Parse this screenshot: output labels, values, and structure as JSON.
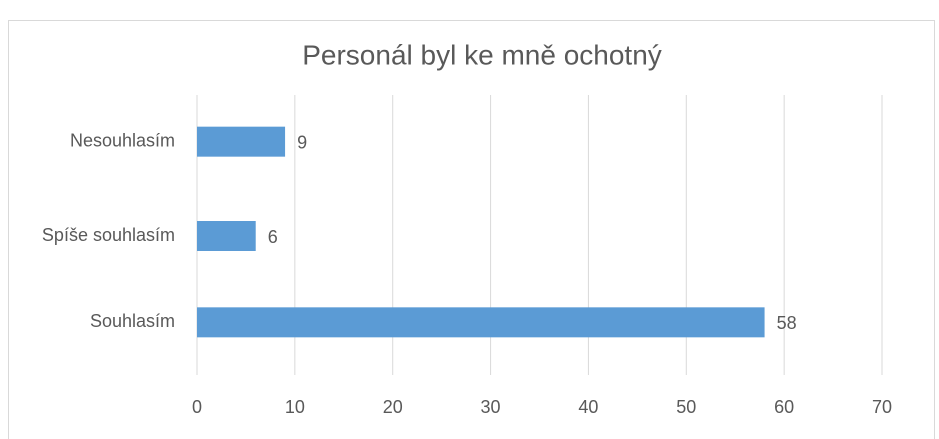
{
  "chart_data": {
    "type": "bar",
    "orientation": "horizontal",
    "title": "Personál byl ke mně ochotný",
    "categories": [
      "Nesouhlasím",
      "Spíše souhlasím",
      "Souhlasím"
    ],
    "values": [
      9,
      6,
      58
    ],
    "color": "#5b9bd5",
    "xlim": [
      0,
      70
    ],
    "xticks": [
      0,
      10,
      20,
      30,
      40,
      50,
      60,
      70
    ],
    "grid": true
  }
}
